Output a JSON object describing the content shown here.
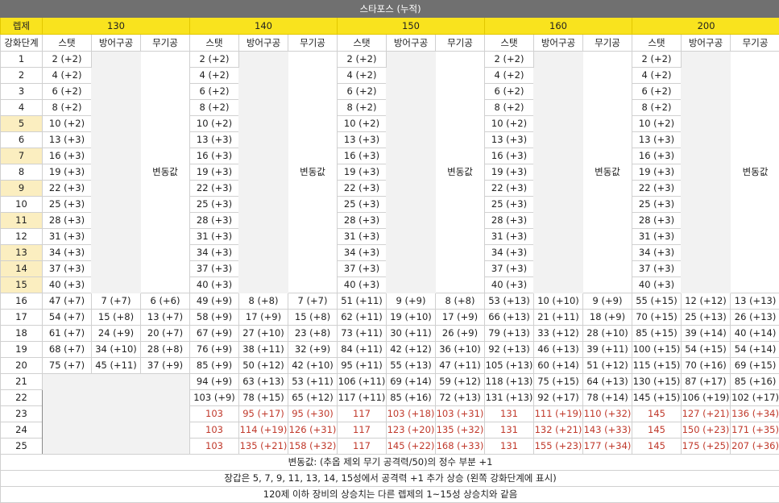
{
  "title": "스타포스 (누적)",
  "level_header": "렙제",
  "stage_header": "강화단계",
  "levels": [
    "130",
    "140",
    "150",
    "160",
    "200"
  ],
  "sub_headers": [
    "스탯",
    "방어구공",
    "무기공"
  ],
  "variable_text": "변동값",
  "stages": [
    "1",
    "2",
    "3",
    "4",
    "5",
    "6",
    "7",
    "8",
    "9",
    "10",
    "11",
    "12",
    "13",
    "14",
    "15",
    "16",
    "17",
    "18",
    "19",
    "20",
    "21",
    "22",
    "23",
    "24",
    "25"
  ],
  "highlighted_stages": [
    "5",
    "7",
    "9",
    "11",
    "13",
    "14",
    "15"
  ],
  "stat_1_15": [
    "2 (+2)",
    "4 (+2)",
    "6 (+2)",
    "8 (+2)",
    "10 (+2)",
    "13 (+3)",
    "16 (+3)",
    "19 (+3)",
    "22 (+3)",
    "25 (+3)",
    "28 (+3)",
    "31 (+3)",
    "34 (+3)",
    "37 (+3)",
    "40 (+3)"
  ],
  "rows_16_25": {
    "130": [
      [
        "47 (+7)",
        "7 (+7)",
        "6 (+6)"
      ],
      [
        "54 (+7)",
        "15 (+8)",
        "13 (+7)"
      ],
      [
        "61 (+7)",
        "24 (+9)",
        "20 (+7)"
      ],
      [
        "68 (+7)",
        "34 (+10)",
        "28 (+8)"
      ],
      [
        "75 (+7)",
        "45 (+11)",
        "37 (+9)"
      ]
    ],
    "140": [
      [
        "49 (+9)",
        "8 (+8)",
        "7 (+7)"
      ],
      [
        "58 (+9)",
        "17 (+9)",
        "15 (+8)"
      ],
      [
        "67 (+9)",
        "27 (+10)",
        "23 (+8)"
      ],
      [
        "76 (+9)",
        "38 (+11)",
        "32 (+9)"
      ],
      [
        "85 (+9)",
        "50 (+12)",
        "42 (+10)"
      ],
      [
        "94 (+9)",
        "63 (+13)",
        "53 (+11)"
      ],
      [
        "103 (+9)",
        "78 (+15)",
        "65 (+12)"
      ],
      [
        "103",
        "95 (+17)",
        "95 (+30)"
      ],
      [
        "103",
        "114 (+19)",
        "126 (+31)"
      ],
      [
        "103",
        "135 (+21)",
        "158 (+32)"
      ]
    ],
    "150": [
      [
        "51 (+11)",
        "9 (+9)",
        "8 (+8)"
      ],
      [
        "62 (+11)",
        "19 (+10)",
        "17 (+9)"
      ],
      [
        "73 (+11)",
        "30 (+11)",
        "26 (+9)"
      ],
      [
        "84 (+11)",
        "42 (+12)",
        "36 (+10)"
      ],
      [
        "95 (+11)",
        "55 (+13)",
        "47 (+11)"
      ],
      [
        "106 (+11)",
        "69 (+14)",
        "59 (+12)"
      ],
      [
        "117 (+11)",
        "85 (+16)",
        "72 (+13)"
      ],
      [
        "117",
        "103 (+18)",
        "103 (+31)"
      ],
      [
        "117",
        "123 (+20)",
        "135 (+32)"
      ],
      [
        "117",
        "145 (+22)",
        "168 (+33)"
      ]
    ],
    "160": [
      [
        "53 (+13)",
        "10 (+10)",
        "9 (+9)"
      ],
      [
        "66 (+13)",
        "21 (+11)",
        "18 (+9)"
      ],
      [
        "79 (+13)",
        "33 (+12)",
        "28 (+10)"
      ],
      [
        "92 (+13)",
        "46 (+13)",
        "39 (+11)"
      ],
      [
        "105 (+13)",
        "60 (+14)",
        "51 (+12)"
      ],
      [
        "118 (+13)",
        "75 (+15)",
        "64 (+13)"
      ],
      [
        "131 (+13)",
        "92 (+17)",
        "78 (+14)"
      ],
      [
        "131",
        "111 (+19)",
        "110 (+32)"
      ],
      [
        "131",
        "132 (+21)",
        "143 (+33)"
      ],
      [
        "131",
        "155 (+23)",
        "177 (+34)"
      ]
    ],
    "200": [
      [
        "55 (+15)",
        "12 (+12)",
        "13 (+13)"
      ],
      [
        "70 (+15)",
        "25 (+13)",
        "26 (+13)"
      ],
      [
        "85 (+15)",
        "39 (+14)",
        "40 (+14)"
      ],
      [
        "100 (+15)",
        "54 (+15)",
        "54 (+14)"
      ],
      [
        "115 (+15)",
        "70 (+16)",
        "69 (+15)"
      ],
      [
        "130 (+15)",
        "87 (+17)",
        "85 (+16)"
      ],
      [
        "145 (+15)",
        "106 (+19)",
        "102 (+17)"
      ],
      [
        "145",
        "127 (+21)",
        "136 (+34)"
      ],
      [
        "145",
        "150 (+23)",
        "171 (+35)"
      ],
      [
        "145",
        "175 (+25)",
        "207 (+36)"
      ]
    ]
  },
  "footnotes": [
    "변동값: (추옵 제외 무기 공격력/50)의 정수 부분 +1",
    "장갑은 5, 7, 9, 11, 13, 14, 15성에서 공격력 +1 추가 상승 (왼쪽 강화단계에 표시)",
    "120제 이하 장비의 상승치는 다른 렙제의 1~15성 상승치와 같음"
  ],
  "colors": {
    "title_bg": "#707070",
    "header_bg": "#f9e31e",
    "highlight": "#fbeec0",
    "red_text": "#c0392b",
    "gray_fill": "#f2f2f2"
  }
}
